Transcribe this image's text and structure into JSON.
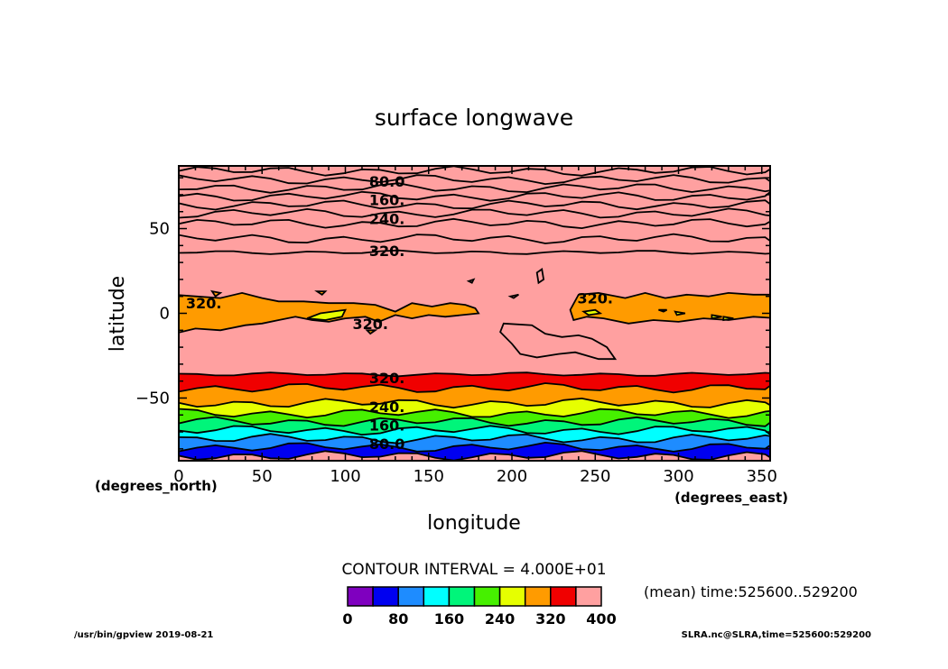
{
  "chart_data": {
    "type": "contour",
    "title": "surface longwave",
    "xlabel": "longitude",
    "ylabel": "latitude",
    "x_units": "(degrees_east)",
    "y_units": "(degrees_north)",
    "xlim": [
      0,
      355
    ],
    "ylim": [
      -87,
      87
    ],
    "x_ticks": [
      "0",
      "50",
      "100",
      "150",
      "200",
      "250",
      "300",
      "350"
    ],
    "y_ticks": [
      "50",
      "0",
      "−50"
    ],
    "contour_interval_text": "CONTOUR INTERVAL = 4.000E+01",
    "time_text": "(mean) time:525600..529200",
    "contour_labels": [
      {
        "text": "80.0",
        "lon": 125,
        "lat": 78
      },
      {
        "text": "160.",
        "lon": 125,
        "lat": 67
      },
      {
        "text": "240.",
        "lon": 125,
        "lat": 56
      },
      {
        "text": "320.",
        "lon": 125,
        "lat": 37
      },
      {
        "text": "320.",
        "lon": 15,
        "lat": 6
      },
      {
        "text": "320.",
        "lon": 115,
        "lat": -6
      },
      {
        "text": "320.",
        "lon": 250,
        "lat": 9
      },
      {
        "text": "320.",
        "lon": 125,
        "lat": -38
      },
      {
        "text": "240.",
        "lon": 125,
        "lat": -55
      },
      {
        "text": "160.",
        "lon": 125,
        "lat": -66
      },
      {
        "text": "80.0",
        "lon": 125,
        "lat": -77
      }
    ],
    "color_levels": [
      {
        "color": "#7f00bf"
      },
      {
        "color": "#0000f0"
      },
      {
        "color": "#1e8cff"
      },
      {
        "color": "#00ffff"
      },
      {
        "color": "#00f57a"
      },
      {
        "color": "#46f000"
      },
      {
        "color": "#e6ff00"
      },
      {
        "color": "#ff9b00"
      },
      {
        "color": "#f00000"
      },
      {
        "color": "#ffa0a0"
      }
    ],
    "colorbar_ticks": [
      "0",
      "80",
      "160",
      "240",
      "320",
      "400"
    ]
  },
  "footer": {
    "left": "/usr/bin/gpview   2019-08-21",
    "right": "SLRA.nc@SLRA,time=525600:529200"
  }
}
